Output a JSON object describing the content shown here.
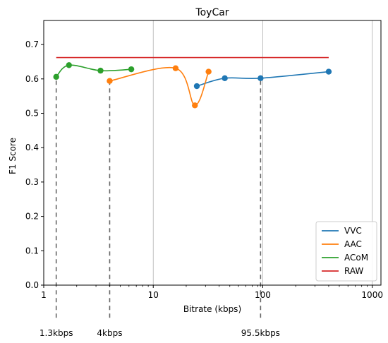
{
  "chart_data": {
    "type": "line",
    "title": "ToyCar",
    "xlabel": "Bitrate (kbps)",
    "ylabel": "F1 Score",
    "xscale": "log",
    "xlim": [
      1,
      1200
    ],
    "ylim": [
      0,
      0.77
    ],
    "grid": "x-major-only",
    "legend_position": "bottom-right",
    "x_ticks": [
      {
        "value": 1,
        "label": "1"
      },
      {
        "value": 10,
        "label": "10"
      },
      {
        "value": 100,
        "label": "100"
      },
      {
        "value": 1000,
        "label": "1000"
      }
    ],
    "y_ticks": [
      {
        "value": 0.0,
        "label": "0.0"
      },
      {
        "value": 0.1,
        "label": "0.1"
      },
      {
        "value": 0.2,
        "label": "0.2"
      },
      {
        "value": 0.3,
        "label": "0.3"
      },
      {
        "value": 0.4,
        "label": "0.4"
      },
      {
        "value": 0.5,
        "label": "0.5"
      },
      {
        "value": 0.6,
        "label": "0.6"
      },
      {
        "value": 0.7,
        "label": "0.7"
      }
    ],
    "series": [
      {
        "name": "VVC",
        "color": "#1f77b4",
        "markers": true,
        "points": [
          {
            "x": 25,
            "y": 0.579
          },
          {
            "x": 45,
            "y": 0.602
          },
          {
            "x": 95.5,
            "y": 0.602
          },
          {
            "x": 400,
            "y": 0.621
          }
        ]
      },
      {
        "name": "AAC",
        "color": "#ff7f0e",
        "markers": true,
        "points": [
          {
            "x": 4,
            "y": 0.594
          },
          {
            "x": 16,
            "y": 0.631
          },
          {
            "x": 24,
            "y": 0.523
          },
          {
            "x": 32,
            "y": 0.621
          }
        ]
      },
      {
        "name": "ACoM",
        "color": "#2ca02c",
        "markers": true,
        "points": [
          {
            "x": 1.3,
            "y": 0.606
          },
          {
            "x": 1.7,
            "y": 0.64
          },
          {
            "x": 3.3,
            "y": 0.624
          },
          {
            "x": 6.3,
            "y": 0.628
          }
        ]
      },
      {
        "name": "RAW",
        "color": "#d62728",
        "markers": false,
        "points": [
          {
            "x": 1.3,
            "y": 0.662
          },
          {
            "x": 400,
            "y": 0.662
          }
        ]
      }
    ],
    "reference_lines": [
      {
        "x": 1.3,
        "label": "1.3kbps"
      },
      {
        "x": 4,
        "label": "4kbps"
      },
      {
        "x": 95.5,
        "label": "95.5kbps"
      }
    ]
  }
}
